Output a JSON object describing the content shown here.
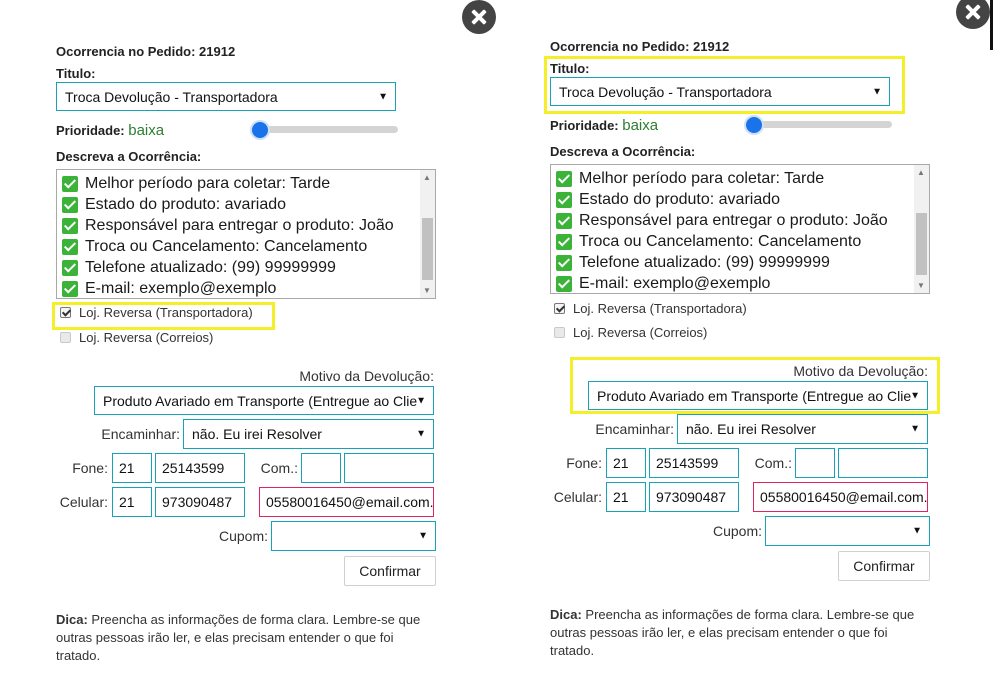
{
  "form": {
    "order_label": "Ocorrencia no Pedido: 21912",
    "title_label": "Titulo:",
    "title_value": "Troca Devolução - Transportadora",
    "priority_label": "Prioridade:",
    "priority_value": "baixa",
    "priority_level": 0,
    "description_label": "Descreva a Ocorrência:",
    "description_lines": [
      "Melhor período para coletar: Tarde",
      "Estado do produto: avariado",
      "Responsável para entregar o produto: João",
      "Troca ou Cancelamento: Cancelamento",
      "Telefone atualizado: (99) 99999999",
      "E-mail: exemplo@exemplo"
    ],
    "checkboxes": [
      {
        "label": "Loj. Reversa (Transportadora)",
        "checked": true
      },
      {
        "label": "Loj. Reversa (Correios)",
        "checked": false
      }
    ],
    "reason_label": "Motivo da Devolução:",
    "reason_value": "Produto Avariado em Transporte (Entregue ao Clie",
    "forward_label": "Encaminhar:",
    "forward_value": "não. Eu irei Resolver",
    "phone_label": "Fone:",
    "phone_ddd": "21",
    "phone_number": "25143599",
    "com_label": "Com.:",
    "com_ddd": "",
    "com_number": "",
    "cell_label": "Celular:",
    "cell_ddd": "21",
    "cell_number": "973090487",
    "email_value": "05580016450@email.com.",
    "coupon_label": "Cupom:",
    "coupon_value": "",
    "confirm_label": "Confirmar",
    "hint_bold": "Dica:",
    "hint_text": " Preencha as informações de forma clara. Lembre-se que outras pessoas irão ler, e elas precisam entender o que foi tratado."
  },
  "icons": {
    "close": "close-icon",
    "select_arrow": "chevron-down-icon",
    "check": "check-mark-icon"
  },
  "colors": {
    "accent_border": "#17a2b8",
    "highlight": "#f5ef2a",
    "priority_text": "#2d7d32",
    "slider_thumb": "#1a73e8",
    "email_border": "#e0245e",
    "check_green": "#3bb339"
  }
}
